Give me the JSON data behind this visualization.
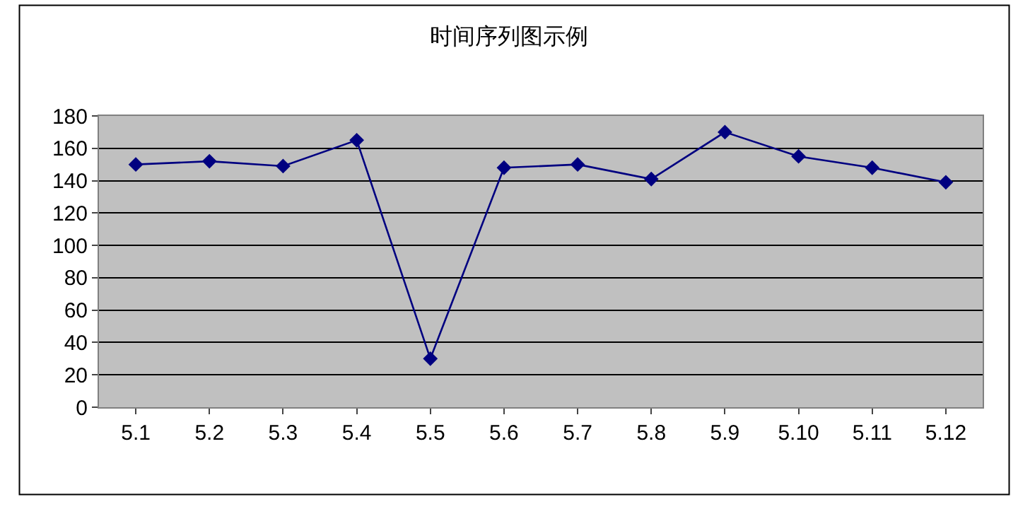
{
  "chart_data": {
    "type": "line",
    "title": "时间序列图示例",
    "categories": [
      "5.1",
      "5.2",
      "5.3",
      "5.4",
      "5.5",
      "5.6",
      "5.7",
      "5.8",
      "5.9",
      "5.10",
      "5.11",
      "5.12"
    ],
    "series": [
      {
        "color": "#000080",
        "values": [
          150,
          152,
          149,
          165,
          30,
          148,
          150,
          141,
          170,
          155,
          148,
          139
        ]
      }
    ],
    "ylim": [
      0,
      180
    ],
    "yticks": [
      0,
      20,
      40,
      60,
      80,
      100,
      120,
      140,
      160,
      180
    ],
    "grid": "y",
    "marker": "diamond",
    "line_style": "solid",
    "legend": false
  }
}
